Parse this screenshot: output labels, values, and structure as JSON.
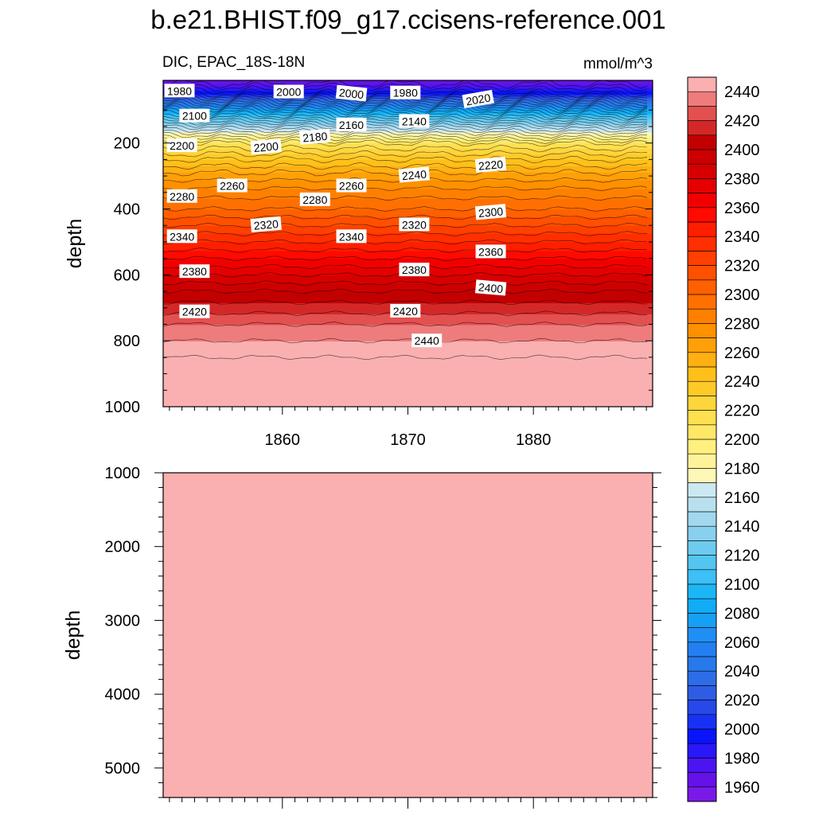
{
  "figure": {
    "title": "b.e21.BHIST.f09_g17.ccisens-reference.001",
    "subtitle_left": "DIC, EPAC_18S-18N",
    "units": "mmol/m^3"
  },
  "chart_data": [
    {
      "type": "heatmap",
      "panel": "upper",
      "variable": "DIC",
      "region": "EPAC_18S-18N",
      "units": "mmol/m^3",
      "xlabel": "",
      "ylabel": "depth",
      "xlim": [
        1850.5,
        1889.5
      ],
      "ylim": [
        1000,
        10
      ],
      "xticks": [
        1860,
        1870,
        1880
      ],
      "yticks": [
        200,
        400,
        600,
        800,
        1000
      ],
      "profile_depth": [
        10,
        50,
        100,
        150,
        200,
        250,
        300,
        350,
        400,
        450,
        500,
        550,
        600,
        650,
        700,
        750,
        800,
        850,
        1000
      ],
      "profile_dic": [
        1960,
        2000,
        2080,
        2150,
        2210,
        2240,
        2265,
        2285,
        2300,
        2320,
        2340,
        2360,
        2380,
        2400,
        2415,
        2430,
        2440,
        2450,
        2455
      ],
      "contour_labels": [
        {
          "text": "1980",
          "year": 1851.8,
          "depth": 42,
          "angle": 0
        },
        {
          "text": "2000",
          "year": 1860.5,
          "depth": 45,
          "angle": 0
        },
        {
          "text": "2000",
          "year": 1865.5,
          "depth": 50,
          "angle": 6
        },
        {
          "text": "1980",
          "year": 1869.8,
          "depth": 48,
          "angle": 0
        },
        {
          "text": "2020",
          "year": 1875.6,
          "depth": 68,
          "angle": -10
        },
        {
          "text": "2100",
          "year": 1853.0,
          "depth": 118,
          "angle": 0
        },
        {
          "text": "2160",
          "year": 1865.5,
          "depth": 145,
          "angle": 0
        },
        {
          "text": "2140",
          "year": 1870.5,
          "depth": 134,
          "angle": 0
        },
        {
          "text": "2180",
          "year": 1862.6,
          "depth": 182,
          "angle": -5
        },
        {
          "text": "2200",
          "year": 1852.0,
          "depth": 208,
          "angle": 0
        },
        {
          "text": "2200",
          "year": 1858.7,
          "depth": 212,
          "angle": -5
        },
        {
          "text": "2220",
          "year": 1876.6,
          "depth": 267,
          "angle": -5
        },
        {
          "text": "2240",
          "year": 1870.5,
          "depth": 297,
          "angle": -5
        },
        {
          "text": "2260",
          "year": 1856.0,
          "depth": 330,
          "angle": 0
        },
        {
          "text": "2260",
          "year": 1865.5,
          "depth": 330,
          "angle": 0
        },
        {
          "text": "2280",
          "year": 1852.0,
          "depth": 362,
          "angle": 0
        },
        {
          "text": "2280",
          "year": 1862.6,
          "depth": 372,
          "angle": 0
        },
        {
          "text": "2300",
          "year": 1876.6,
          "depth": 410,
          "angle": -5
        },
        {
          "text": "2320",
          "year": 1858.7,
          "depth": 448,
          "angle": -5
        },
        {
          "text": "2320",
          "year": 1870.5,
          "depth": 448,
          "angle": 0
        },
        {
          "text": "2340",
          "year": 1852.0,
          "depth": 484,
          "angle": 0
        },
        {
          "text": "2340",
          "year": 1865.5,
          "depth": 484,
          "angle": 0
        },
        {
          "text": "2360",
          "year": 1876.6,
          "depth": 530,
          "angle": 0
        },
        {
          "text": "2380",
          "year": 1853.0,
          "depth": 590,
          "angle": 0
        },
        {
          "text": "2380",
          "year": 1870.5,
          "depth": 585,
          "angle": 0
        },
        {
          "text": "2400",
          "year": 1876.6,
          "depth": 640,
          "angle": 5
        },
        {
          "text": "2420",
          "year": 1853.0,
          "depth": 712,
          "angle": 0
        },
        {
          "text": "2420",
          "year": 1869.8,
          "depth": 710,
          "angle": 0
        },
        {
          "text": "2440",
          "year": 1871.5,
          "depth": 800,
          "angle": 0
        }
      ]
    },
    {
      "type": "heatmap",
      "panel": "lower",
      "variable": "DIC",
      "units": "mmol/m^3",
      "xlabel": "",
      "ylabel": "depth",
      "xlim": [
        1850.5,
        1889.5
      ],
      "ylim": [
        5400,
        1000
      ],
      "yticks": [
        1000,
        2000,
        3000,
        4000,
        5000
      ],
      "uniform_value": 2455
    },
    {
      "type": "colorbar",
      "levels": [
        1960,
        1980,
        2000,
        2020,
        2040,
        2060,
        2080,
        2100,
        2120,
        2140,
        2160,
        2180,
        2200,
        2220,
        2240,
        2260,
        2280,
        2300,
        2320,
        2340,
        2360,
        2380,
        2400,
        2420,
        2440
      ],
      "level_step": 10,
      "colors": [
        "#7a19e8",
        "#6412e8",
        "#4c14f0",
        "#2a17fa",
        "#0a14fa",
        "#1832f5",
        "#2848ea",
        "#2f5ce4",
        "#2e6de8",
        "#2879ec",
        "#247ff0",
        "#1f8ff4",
        "#16a0f4",
        "#10acf5",
        "#1cb6f6",
        "#3cc0f6",
        "#52c6f0",
        "#6ecbf0",
        "#88d0ef",
        "#a2d8ee",
        "#b8e0ef",
        "#cce8f1",
        "#fff7b5",
        "#fff39a",
        "#fff07f",
        "#ffe866",
        "#ffe050",
        "#ffd53c",
        "#ffca28",
        "#ffc01a",
        "#ffb012",
        "#ffa008",
        "#ff9000",
        "#ff8000",
        "#ff7000",
        "#ff6000",
        "#ff5000",
        "#ff4000",
        "#ff2f00",
        "#ff1e00",
        "#ff0a00",
        "#f20000",
        "#e40000",
        "#d60000",
        "#cc0000",
        "#c20000",
        "#d42828",
        "#e35050",
        "#ee7c7c",
        "#fab0b0"
      ]
    }
  ]
}
